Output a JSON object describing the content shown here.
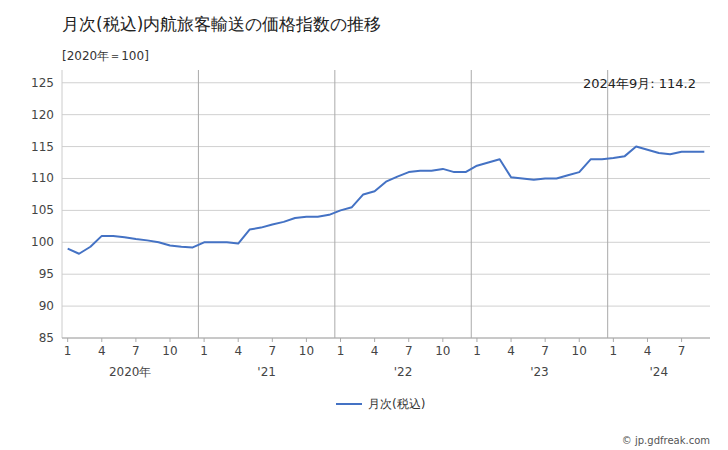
{
  "chart_data": {
    "type": "line",
    "title": "月次(税込)内航旅客輸送の価格指数の推移",
    "ylabel": "[2020年＝100]",
    "annotations": [
      "2024年9月: 114.2"
    ],
    "caption": "© jp.gdfreak.com",
    "categories": [
      "1",
      null,
      null,
      "4",
      null,
      null,
      "7",
      null,
      null,
      "10",
      null,
      null,
      "1",
      null,
      null,
      "4",
      null,
      null,
      "7",
      null,
      null,
      "10",
      null,
      null,
      "1",
      null,
      null,
      "4",
      null,
      null,
      "7",
      null,
      null,
      "10",
      null,
      null,
      "1",
      null,
      null,
      "4",
      null,
      null,
      "7",
      null,
      null,
      "10",
      null,
      null,
      "1",
      null,
      null,
      "4",
      null,
      null,
      "7",
      null,
      null
    ],
    "x_groups": [
      {
        "label": "2020年",
        "start": 0,
        "end": 11
      },
      {
        "label": "'21",
        "start": 12,
        "end": 23
      },
      {
        "label": "'22",
        "start": 24,
        "end": 35
      },
      {
        "label": "'23",
        "start": 36,
        "end": 47
      },
      {
        "label": "'24",
        "start": 48,
        "end": 56
      }
    ],
    "series": [
      {
        "name": "月次(税込)",
        "color": "#4472c4",
        "values": [
          99.0,
          98.2,
          99.3,
          101.0,
          101.0,
          100.8,
          100.5,
          100.3,
          100.0,
          99.5,
          99.3,
          99.2,
          100.0,
          100.0,
          100.0,
          99.8,
          102.0,
          102.3,
          102.8,
          103.2,
          103.8,
          104.0,
          104.0,
          104.3,
          105.0,
          105.5,
          107.5,
          108.0,
          109.5,
          110.3,
          111.0,
          111.2,
          111.2,
          111.5,
          111.0,
          111.0,
          112.0,
          112.5,
          113.0,
          110.2,
          110.0,
          109.8,
          110.0,
          110.0,
          110.5,
          111.0,
          113.0,
          113.0,
          113.2,
          113.5,
          115.0,
          114.5,
          114.0,
          113.8,
          114.2,
          114.2,
          114.2
        ]
      }
    ],
    "ylim": [
      85,
      127
    ],
    "yticks": [
      85,
      90,
      95,
      100,
      105,
      110,
      115,
      120,
      125
    ],
    "grid": true,
    "legend": "bottom"
  }
}
